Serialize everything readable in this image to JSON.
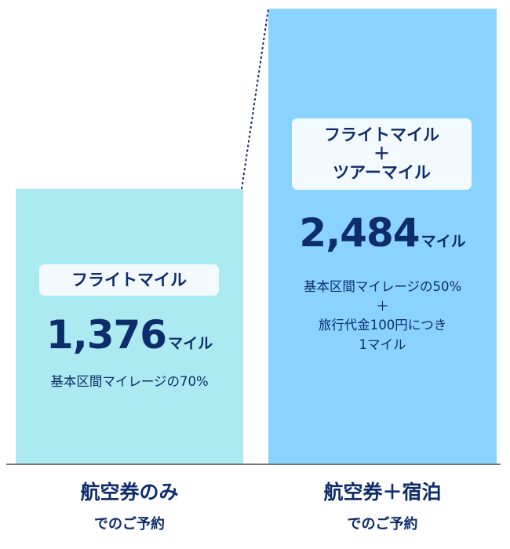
{
  "chart_data": {
    "type": "bar",
    "categories": [
      "航空券のみ",
      "航空券＋宿泊"
    ],
    "category_sublabel": "でのご予約",
    "values": [
      1376,
      2484
    ],
    "unit": "マイル",
    "colors": [
      "#aaeaf0",
      "#8ad3ff"
    ],
    "bars": [
      {
        "tag_lines": [
          "フライトマイル"
        ],
        "value_text": "1,376",
        "notes": [
          "基本区間マイレージの70%"
        ]
      },
      {
        "tag_lines": [
          "フライトマイル",
          "＋",
          "ツアーマイル"
        ],
        "value_text": "2,484",
        "notes": [
          "基本区間マイレージの50%",
          "＋",
          "旅行代金100円につき",
          "1マイル"
        ]
      }
    ],
    "highlight_color": "#fafa3a",
    "text_color": "#0d2c6b"
  }
}
